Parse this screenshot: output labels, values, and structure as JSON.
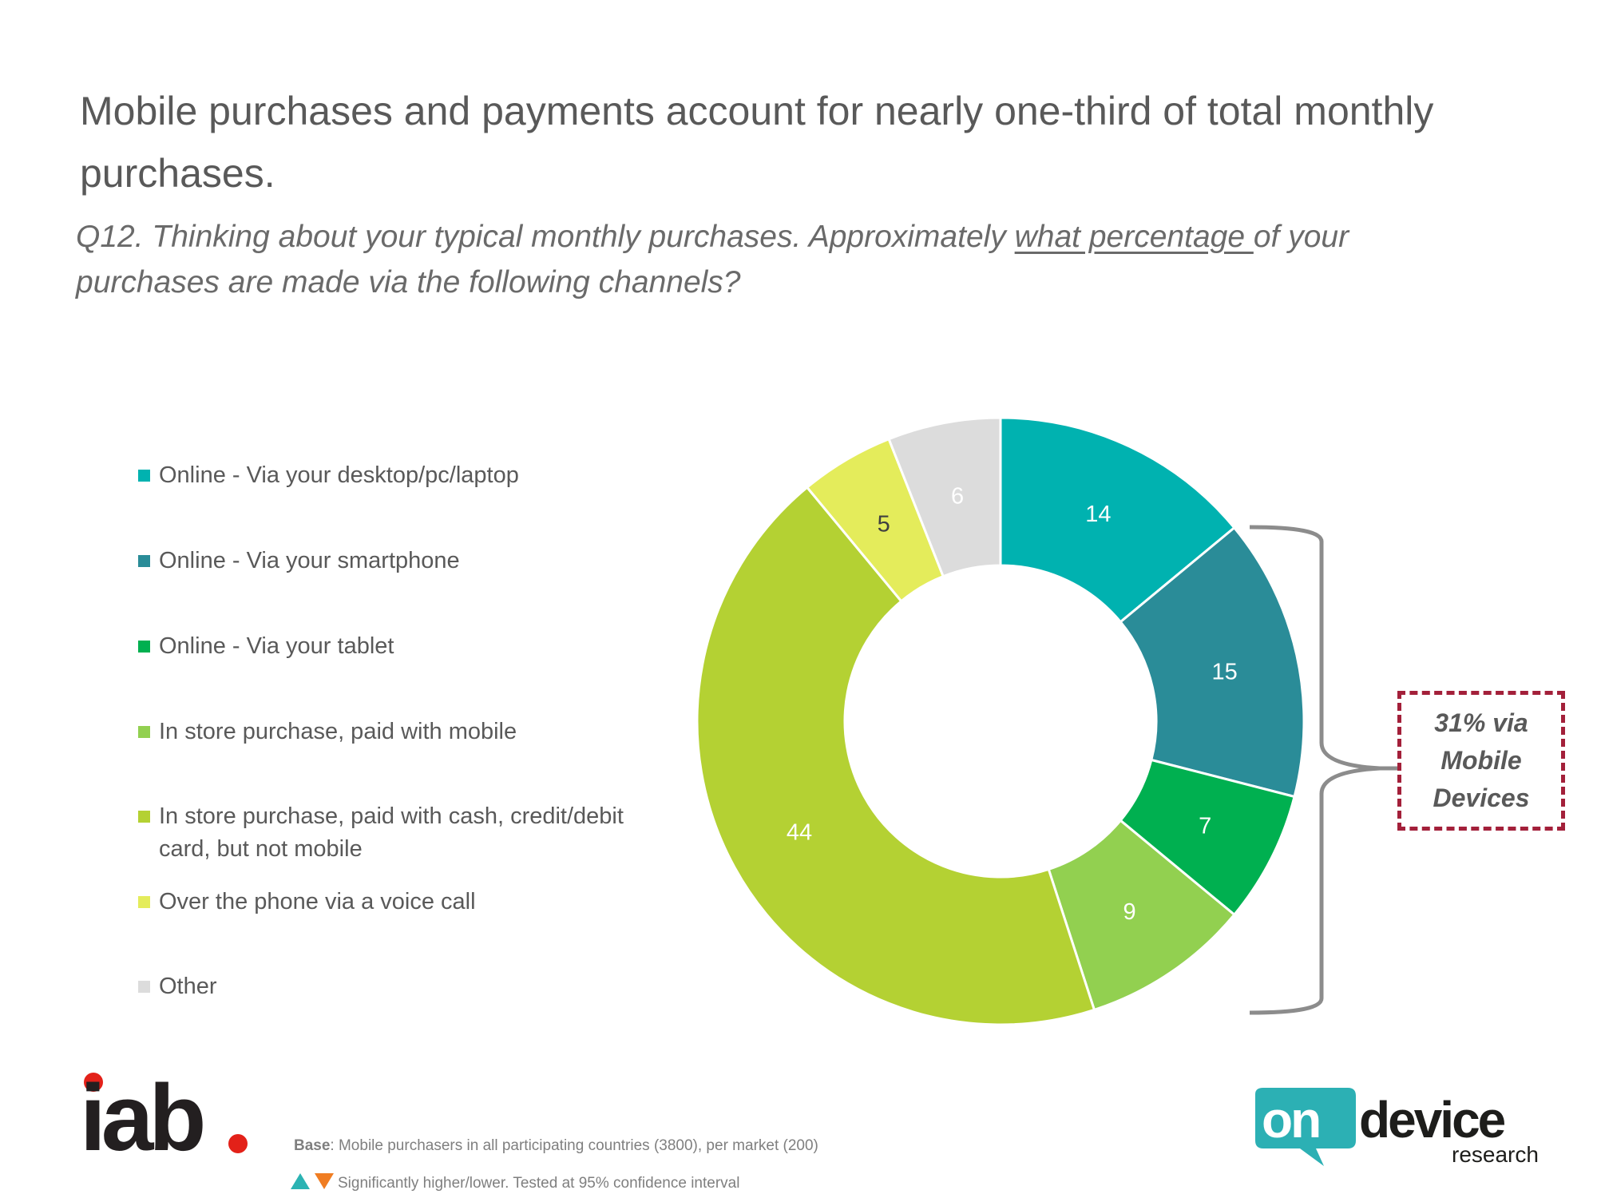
{
  "slide": {
    "title": "Mobile purchases and payments account for nearly one-third of total monthly purchases.",
    "question_prefix": "Q12. Thinking about your typical monthly purchases. Approximately ",
    "question_emphasis": "what percentage ",
    "question_suffix": "of your purchases are made via the following channels?"
  },
  "chart_data": {
    "type": "pie",
    "subtype": "donut",
    "title": "",
    "categories": [
      "Online - Via your desktop/pc/laptop",
      "Online - Via your smartphone",
      "Online - Via your tablet",
      "In store purchase, paid with mobile",
      "In store purchase, paid with cash, credit/debit card, but not mobile",
      "Over the phone via a voice call",
      "Other"
    ],
    "values": [
      14,
      15,
      7,
      9,
      44,
      5,
      6
    ],
    "data_labels": [
      "14",
      "15",
      "7",
      "9",
      "44",
      "5",
      "6"
    ],
    "colors": [
      "#00b2b0",
      "#2a8c98",
      "#00b050",
      "#92d050",
      "#b4d133",
      "#e4ec5b",
      "#dcdcdc"
    ],
    "label_colors": [
      "#ffffff",
      "#ffffff",
      "#ffffff",
      "#ffffff",
      "#ffffff",
      "#404040",
      "#ffffff"
    ],
    "legend_position": "left",
    "annotation": "31% via Mobile Devices",
    "annotation_color": "#a3203a"
  },
  "legend_items": [
    {
      "label": "Online - Via your desktop/pc/laptop",
      "color": "#00b2b0"
    },
    {
      "label": "Online - Via your smartphone",
      "color": "#2a8c98"
    },
    {
      "label": "Online - Via your tablet",
      "color": "#00b050"
    },
    {
      "label": "In store purchase, paid with mobile",
      "color": "#92d050"
    },
    {
      "label": "In store purchase, paid with cash, credit/debit card, but not mobile",
      "color": "#b4d133"
    },
    {
      "label": "Over the phone via a voice call",
      "color": "#e4ec5b"
    },
    {
      "label": "Other",
      "color": "#dcdcdc"
    }
  ],
  "footer": {
    "base_label": "Base",
    "base_text": ": Mobile purchasers in all participating countries (3800), per market (200)",
    "significance_text": "Significantly higher/lower. Tested at 95% confidence interval"
  },
  "logos": {
    "iab": "iab.",
    "ondevice_main_1": "on",
    "ondevice_main_2": "device",
    "ondevice_sub": "research"
  }
}
